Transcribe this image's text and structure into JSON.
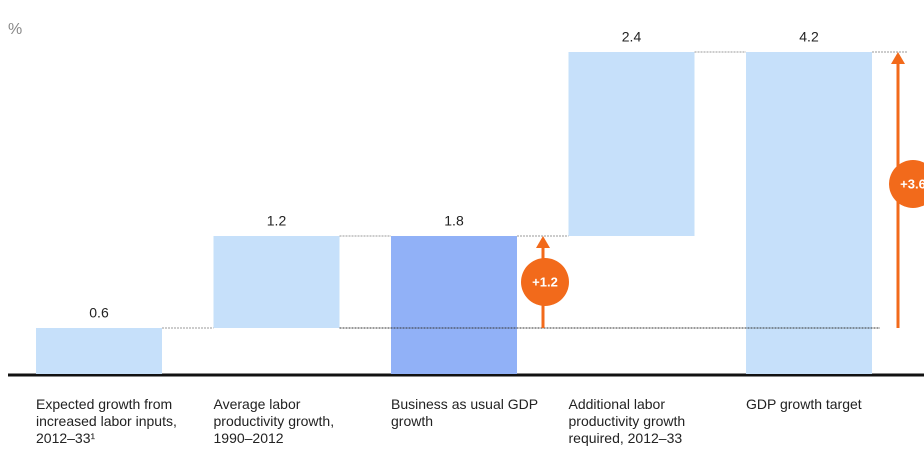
{
  "chart_data": {
    "type": "waterfall",
    "unit": "%",
    "categories": [
      "Expected growth from increased labor inputs, 2012–33¹",
      "Average labor productivity growth, 1990–2012",
      "Business as usual GDP growth",
      "Additional labor productivity growth required, 2012–33",
      "GDP growth target"
    ],
    "values": [
      0.6,
      1.2,
      1.8,
      2.4,
      4.2
    ],
    "kinds": [
      "increase",
      "increase",
      "total",
      "increase",
      "total"
    ],
    "colors": [
      "#c6e0fa",
      "#c6e0fa",
      "#91b1f7",
      "#c6e0fa",
      "#c6e0fa"
    ],
    "annotations": [
      {
        "label": "+1.2",
        "from": 0.6,
        "to": 1.8,
        "after": 2,
        "color": "#f26a1b"
      },
      {
        "label": "+3.6",
        "from": 0.6,
        "to": 4.2,
        "after": 4,
        "color": "#f26a1b"
      }
    ]
  }
}
